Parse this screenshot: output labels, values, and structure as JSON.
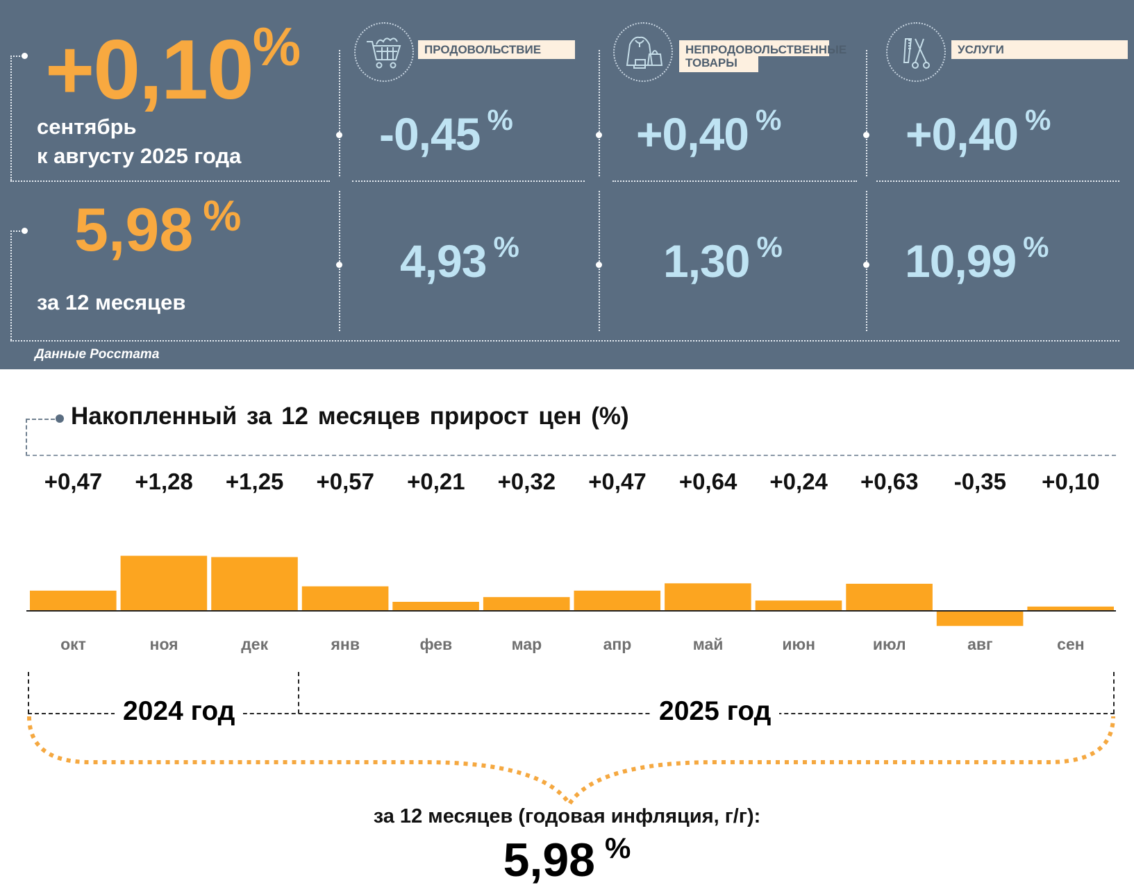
{
  "colors": {
    "panel_bg": "#5a6d81",
    "headline_orange": "#f8a940",
    "category_value_blue": "#bfe3f3",
    "category_label_bg": "#fdf0e0",
    "bar_orange": "#fca520",
    "month_label_gray": "#707070",
    "brace_orange": "#f5a840"
  },
  "summary": {
    "monthly": {
      "value": "+0,10",
      "unit": "%",
      "line1": "сентябрь",
      "line2": "к августу 2025 года"
    },
    "annual": {
      "value": "5,98",
      "unit": "%",
      "caption": "за 12 месяцев"
    },
    "source": "Данные Росстата"
  },
  "categories": [
    {
      "icon": "shopping-cart-icon",
      "label": "ПРОДОВОЛЬСТВИЕ",
      "monthly": "-0,45",
      "annual": "4,93",
      "unit": "%"
    },
    {
      "icon": "clothing-bag-icon",
      "label_line1": "НЕПРОДОВОЛЬСТВЕННЫЕ",
      "label_line2": "ТОВАРЫ",
      "monthly": "+0,40",
      "annual": "1,30",
      "unit": "%"
    },
    {
      "icon": "comb-scissors-icon",
      "label": "УСЛУГИ",
      "monthly": "+0,40",
      "annual": "10,99",
      "unit": "%"
    }
  ],
  "chart_data": {
    "type": "bar",
    "title": "Накопленный за 12 месяцев прирост цен (%)",
    "categories": [
      "окт",
      "ноя",
      "дек",
      "янв",
      "фев",
      "мар",
      "апр",
      "май",
      "июн",
      "июл",
      "авг",
      "сен"
    ],
    "values": [
      0.47,
      1.28,
      1.25,
      0.57,
      0.21,
      0.32,
      0.47,
      0.64,
      0.24,
      0.63,
      -0.35,
      0.1
    ],
    "value_labels": [
      "+0,47",
      "+1,28",
      "+1,25",
      "+0,57",
      "+0,21",
      "+0,32",
      "+0,47",
      "+0,64",
      "+0,24",
      "+0,63",
      "-0,35",
      "+0,10"
    ],
    "ylim": [
      -0.5,
      1.4
    ],
    "xlabel": "",
    "ylabel": "",
    "grid": false,
    "year_groups": [
      {
        "label": "2024 год",
        "months": [
          "окт",
          "ноя",
          "дек"
        ]
      },
      {
        "label": "2025 год",
        "months": [
          "янв",
          "фев",
          "мар",
          "апр",
          "май",
          "июн",
          "июл",
          "авг",
          "сен"
        ]
      }
    ],
    "total_caption": "за 12 месяцев (годовая инфляция, г/г):",
    "total_value": "5,98",
    "total_unit": "%"
  }
}
